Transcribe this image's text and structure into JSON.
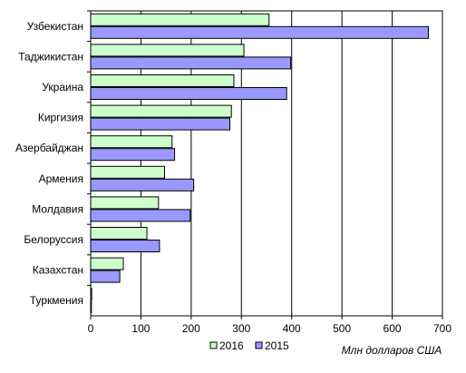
{
  "chart_data": {
    "type": "bar",
    "orientation": "horizontal",
    "categories": [
      "Узбекистан",
      "Таджикистан",
      "Украина",
      "Киргизия",
      "Азербайджан",
      "Армения",
      "Молдавия",
      "Белоруссия",
      "Казахстан",
      "Туркмения"
    ],
    "series": [
      {
        "name": "2016",
        "color": "#ccffcc",
        "values": [
          355,
          305,
          285,
          280,
          162,
          147,
          135,
          112,
          65,
          2
        ]
      },
      {
        "name": "2015",
        "color": "#9999ff",
        "values": [
          672,
          398,
          390,
          277,
          167,
          205,
          198,
          137,
          58,
          1
        ]
      }
    ],
    "xlim": [
      0,
      700
    ],
    "x_ticks": [
      "0",
      "100",
      "200",
      "300",
      "400",
      "500",
      "600",
      "700"
    ],
    "xlabel": "Млн долларов США",
    "title": "",
    "grid": "vertical",
    "legend_position": "bottom"
  }
}
